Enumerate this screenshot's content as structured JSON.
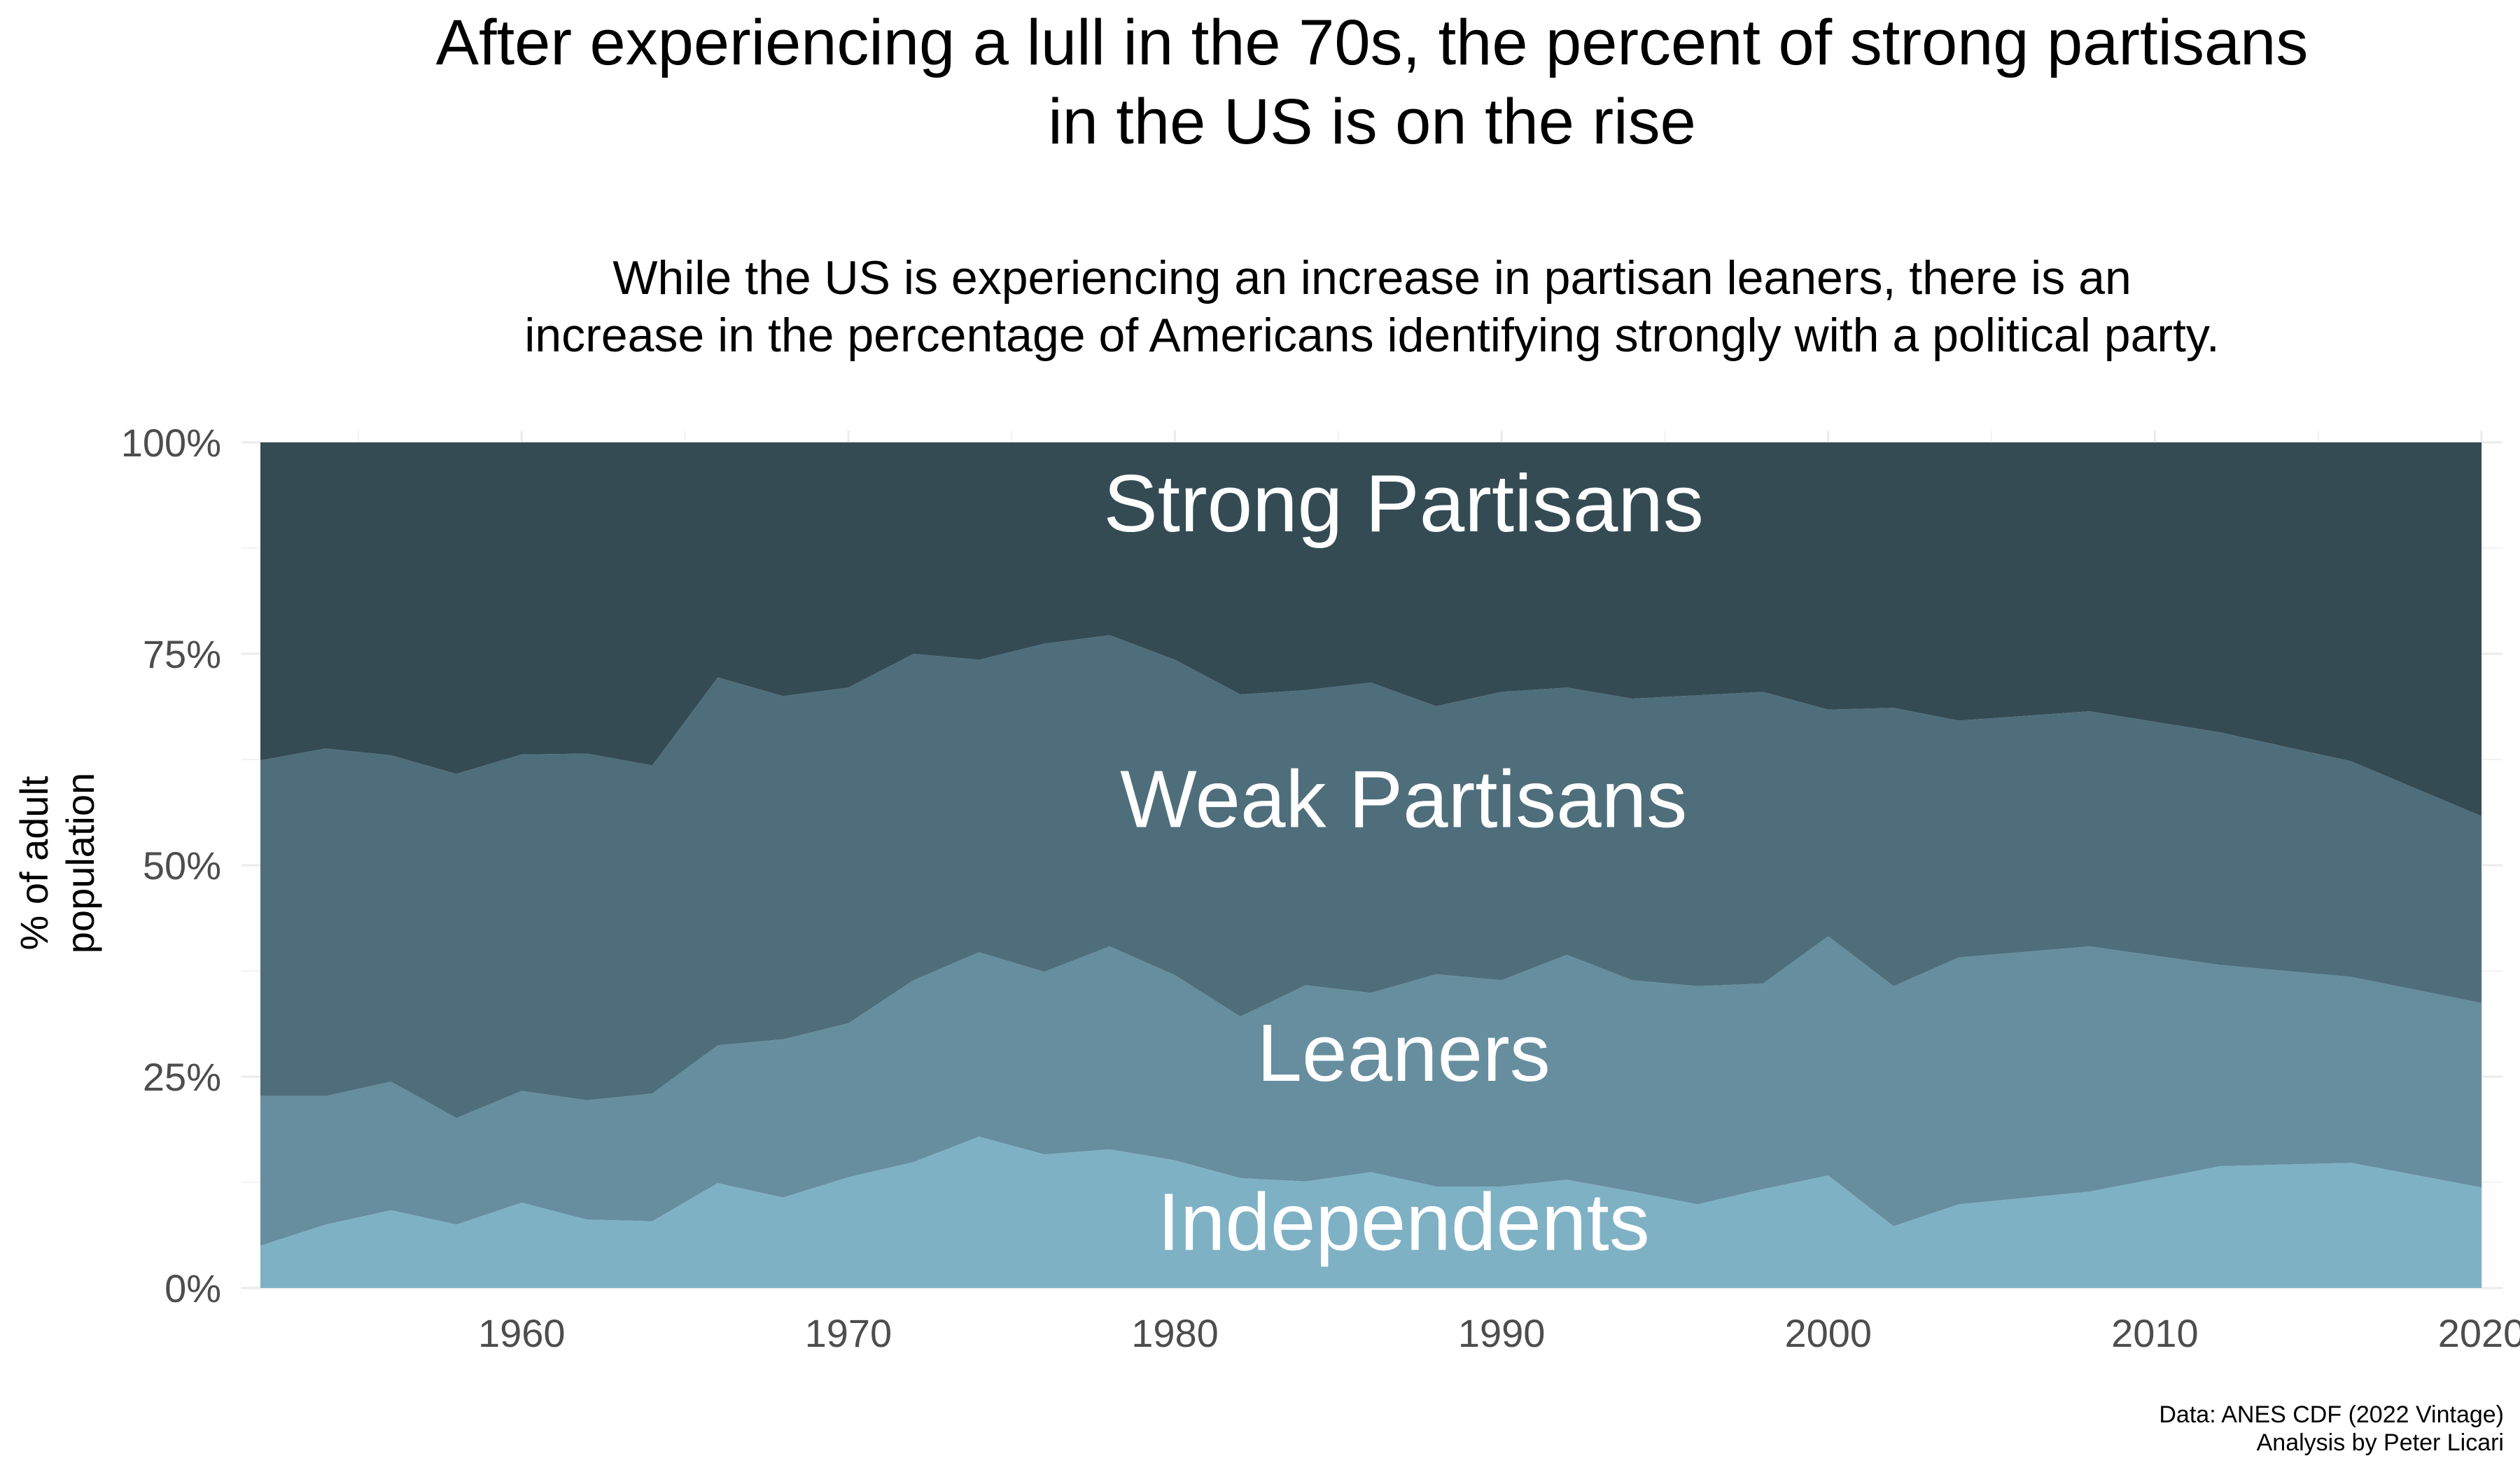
{
  "chart_data": {
    "type": "area",
    "stacked": true,
    "title": [
      "After experiencing a lull in the 70s, the percent of strong partisans",
      "in the US is on the rise"
    ],
    "subtitle": [
      "While the US is experiencing an increase in partisan leaners, there is an",
      "increase in the percentage of Americans identifying strongly with a political party."
    ],
    "ylabel": [
      "% of adult",
      "population"
    ],
    "xlabel": "",
    "xlim": [
      1952,
      2020
    ],
    "ylim": [
      0,
      100
    ],
    "x_ticks": [
      1960,
      1970,
      1980,
      1990,
      2000,
      2010,
      2020
    ],
    "y_ticks": [
      0,
      25,
      50,
      75,
      100
    ],
    "y_tick_labels": [
      "0%",
      "25%",
      "50%",
      "75%",
      "100%"
    ],
    "grid": true,
    "legend": "none (labels drawn on areas)",
    "caption": [
      "Data: ANES CDF (2022 Vintage)",
      "Analysis by Peter Licari"
    ],
    "x": [
      1952,
      1954,
      1956,
      1958,
      1960,
      1962,
      1964,
      1966,
      1968,
      1970,
      1972,
      1974,
      1976,
      1978,
      1980,
      1982,
      1984,
      1986,
      1988,
      1990,
      1992,
      1994,
      1996,
      1998,
      2000,
      2002,
      2004,
      2008,
      2012,
      2016,
      2020
    ],
    "series": [
      {
        "name": "Independents",
        "color": "#7fb1c5",
        "values": [
          5.0,
          7.5,
          9.2,
          7.5,
          10.1,
          8.1,
          7.9,
          12.4,
          10.7,
          13.1,
          14.9,
          17.9,
          15.8,
          16.4,
          15.1,
          13.0,
          12.6,
          13.7,
          12.0,
          12.0,
          12.8,
          11.4,
          9.9,
          11.7,
          13.3,
          7.3,
          9.9,
          11.4,
          14.4,
          14.8,
          11.9
        ]
      },
      {
        "name": "Leaners",
        "color": "#668e9f",
        "values": [
          17.7,
          15.2,
          15.2,
          12.6,
          13.2,
          14.1,
          15.1,
          16.3,
          18.7,
          18.2,
          21.5,
          21.8,
          21.6,
          24.0,
          21.9,
          19.1,
          23.2,
          21.2,
          25.1,
          24.4,
          26.6,
          25.0,
          25.8,
          24.3,
          28.3,
          28.4,
          29.2,
          29.0,
          23.8,
          22.0,
          21.8
        ]
      },
      {
        "name": "Weak Partisans",
        "color": "#4f6e7b",
        "values": [
          39.7,
          41.1,
          38.6,
          40.7,
          39.8,
          41.0,
          38.8,
          43.5,
          40.6,
          39.7,
          38.6,
          34.6,
          38.8,
          36.8,
          37.3,
          38.1,
          34.9,
          36.7,
          31.7,
          34.1,
          31.6,
          33.3,
          34.4,
          34.5,
          26.8,
          32.9,
          28.0,
          27.8,
          27.5,
          25.5,
          22.1
        ]
      },
      {
        "name": "Strong Partisans",
        "color": "#344b54",
        "values": [
          37.6,
          36.2,
          37.0,
          39.2,
          36.9,
          36.8,
          38.2,
          27.8,
          30.0,
          29.0,
          25.0,
          25.7,
          23.8,
          22.8,
          25.7,
          29.8,
          29.3,
          28.4,
          31.2,
          29.5,
          29.0,
          30.3,
          29.9,
          29.5,
          31.6,
          31.4,
          32.9,
          31.8,
          34.3,
          37.7,
          44.2
        ]
      }
    ],
    "area_labels": [
      {
        "text": "Strong Partisans",
        "x": 1987,
        "y": 89.5
      },
      {
        "text": "Weak Partisans",
        "x": 1987,
        "y": 54.5
      },
      {
        "text": "Leaners",
        "x": 1987,
        "y": 24.5
      },
      {
        "text": "Independents",
        "x": 1987,
        "y": 4.5
      }
    ]
  }
}
